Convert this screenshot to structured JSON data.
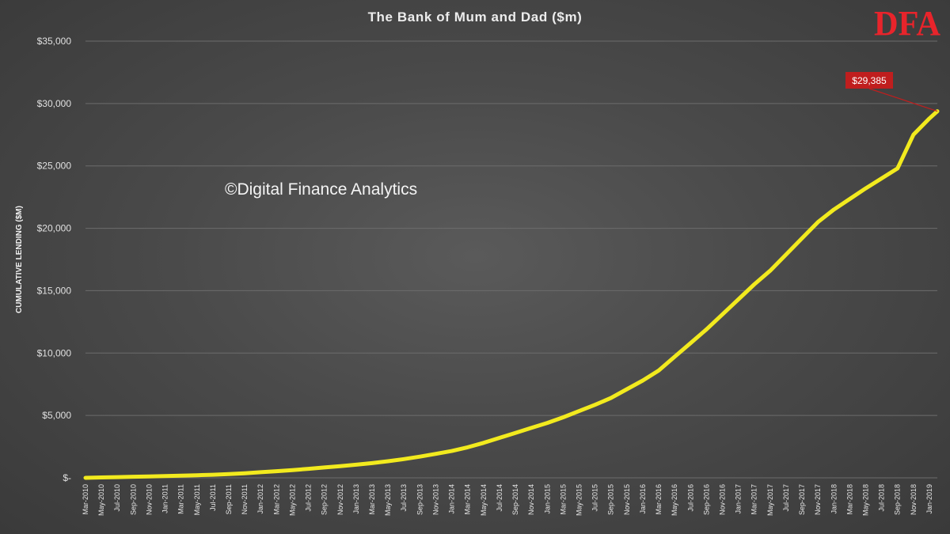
{
  "logo": {
    "text": "DFA",
    "color": "#e8242b"
  },
  "watermark": "©Digital Finance Analytics",
  "colors": {
    "line": "#f2ea1e",
    "callout": "#c01e1e",
    "background": "#4a4a4a",
    "grid": "#6c6c6c"
  },
  "chart_data": {
    "type": "line",
    "title": "The Bank of Mum and Dad ($m)",
    "xlabel": "",
    "ylabel": "CUMULATIVE LENDING ($M)",
    "ylim": [
      0,
      35000
    ],
    "yticks": [
      {
        "value": 0,
        "label": "$-"
      },
      {
        "value": 5000,
        "label": "$5,000"
      },
      {
        "value": 10000,
        "label": "$10,000"
      },
      {
        "value": 15000,
        "label": "$15,000"
      },
      {
        "value": 20000,
        "label": "$20,000"
      },
      {
        "value": 25000,
        "label": "$25,000"
      },
      {
        "value": 30000,
        "label": "$30,000"
      },
      {
        "value": 35000,
        "label": "$35,000"
      }
    ],
    "grid": true,
    "x_tick_labels": [
      "Mar-2010",
      "May-2010",
      "Jul-2010",
      "Sep-2010",
      "Nov-2010",
      "Jan-2011",
      "Mar-2011",
      "May-2011",
      "Jul-2011",
      "Sep-2011",
      "Nov-2011",
      "Jan-2012",
      "Mar-2012",
      "May-2012",
      "Jul-2012",
      "Sep-2012",
      "Nov-2012",
      "Jan-2013",
      "Mar-2013",
      "May-2013",
      "Jul-2013",
      "Sep-2013",
      "Nov-2013",
      "Jan-2014",
      "Mar-2014",
      "May-2014",
      "Jul-2014",
      "Sep-2014",
      "Nov-2014",
      "Jan-2015",
      "Mar-2015",
      "May-2015",
      "Jul-2015",
      "Sep-2015",
      "Nov-2015",
      "Jan-2016",
      "Mar-2016",
      "May-2016",
      "Jul-2016",
      "Sep-2016",
      "Nov-2016",
      "Jan-2017",
      "Mar-2017",
      "May-2017",
      "Jul-2017",
      "Sep-2017",
      "Nov-2017",
      "Jan-2018",
      "Mar-2018",
      "May-2018",
      "Jul-2018",
      "Sep-2018",
      "Nov-2018",
      "Jan-2019"
    ],
    "series": [
      {
        "color": "#f2ea1e",
        "points": [
          {
            "x": "Mar-2010",
            "y": 0
          },
          {
            "x": "May-2010",
            "y": 30
          },
          {
            "x": "Jul-2010",
            "y": 60
          },
          {
            "x": "Sep-2010",
            "y": 90
          },
          {
            "x": "Nov-2010",
            "y": 110
          },
          {
            "x": "Jan-2011",
            "y": 140
          },
          {
            "x": "Mar-2011",
            "y": 170
          },
          {
            "x": "May-2011",
            "y": 210
          },
          {
            "x": "Jul-2011",
            "y": 250
          },
          {
            "x": "Sep-2011",
            "y": 300
          },
          {
            "x": "Nov-2011",
            "y": 370
          },
          {
            "x": "Jan-2012",
            "y": 450
          },
          {
            "x": "Mar-2012",
            "y": 530
          },
          {
            "x": "May-2012",
            "y": 620
          },
          {
            "x": "Jul-2012",
            "y": 720
          },
          {
            "x": "Sep-2012",
            "y": 830
          },
          {
            "x": "Nov-2012",
            "y": 940
          },
          {
            "x": "Jan-2013",
            "y": 1050
          },
          {
            "x": "Mar-2013",
            "y": 1180
          },
          {
            "x": "May-2013",
            "y": 1330
          },
          {
            "x": "Jul-2013",
            "y": 1500
          },
          {
            "x": "Sep-2013",
            "y": 1700
          },
          {
            "x": "Nov-2013",
            "y": 1920
          },
          {
            "x": "Jan-2014",
            "y": 2150
          },
          {
            "x": "Mar-2014",
            "y": 2450
          },
          {
            "x": "May-2014",
            "y": 2800
          },
          {
            "x": "Jul-2014",
            "y": 3200
          },
          {
            "x": "Sep-2014",
            "y": 3600
          },
          {
            "x": "Nov-2014",
            "y": 4000
          },
          {
            "x": "Jan-2015",
            "y": 4400
          },
          {
            "x": "Mar-2015",
            "y": 4850
          },
          {
            "x": "May-2015",
            "y": 5350
          },
          {
            "x": "Jul-2015",
            "y": 5850
          },
          {
            "x": "Sep-2015",
            "y": 6400
          },
          {
            "x": "Nov-2015",
            "y": 7100
          },
          {
            "x": "Jan-2016",
            "y": 7800
          },
          {
            "x": "Mar-2016",
            "y": 8600
          },
          {
            "x": "May-2016",
            "y": 9700
          },
          {
            "x": "Jul-2016",
            "y": 10800
          },
          {
            "x": "Sep-2016",
            "y": 11900
          },
          {
            "x": "Nov-2016",
            "y": 13100
          },
          {
            "x": "Jan-2017",
            "y": 14300
          },
          {
            "x": "Mar-2017",
            "y": 15500
          },
          {
            "x": "May-2017",
            "y": 16600
          },
          {
            "x": "Jul-2017",
            "y": 17900
          },
          {
            "x": "Sep-2017",
            "y": 19200
          },
          {
            "x": "Nov-2017",
            "y": 20500
          },
          {
            "x": "Jan-2018",
            "y": 21500
          },
          {
            "x": "Mar-2018",
            "y": 22350
          },
          {
            "x": "May-2018",
            "y": 23200
          },
          {
            "x": "Jul-2018",
            "y": 24000
          },
          {
            "x": "Sep-2018",
            "y": 24800
          },
          {
            "x": "Nov-2018",
            "y": 27500
          },
          {
            "x": "Jan-2019",
            "y": 28800
          },
          {
            "x": "Feb-2019",
            "y": 29385
          }
        ]
      }
    ],
    "annotation": {
      "x": "Feb-2019",
      "value": 29385,
      "label": "$29,385"
    }
  }
}
